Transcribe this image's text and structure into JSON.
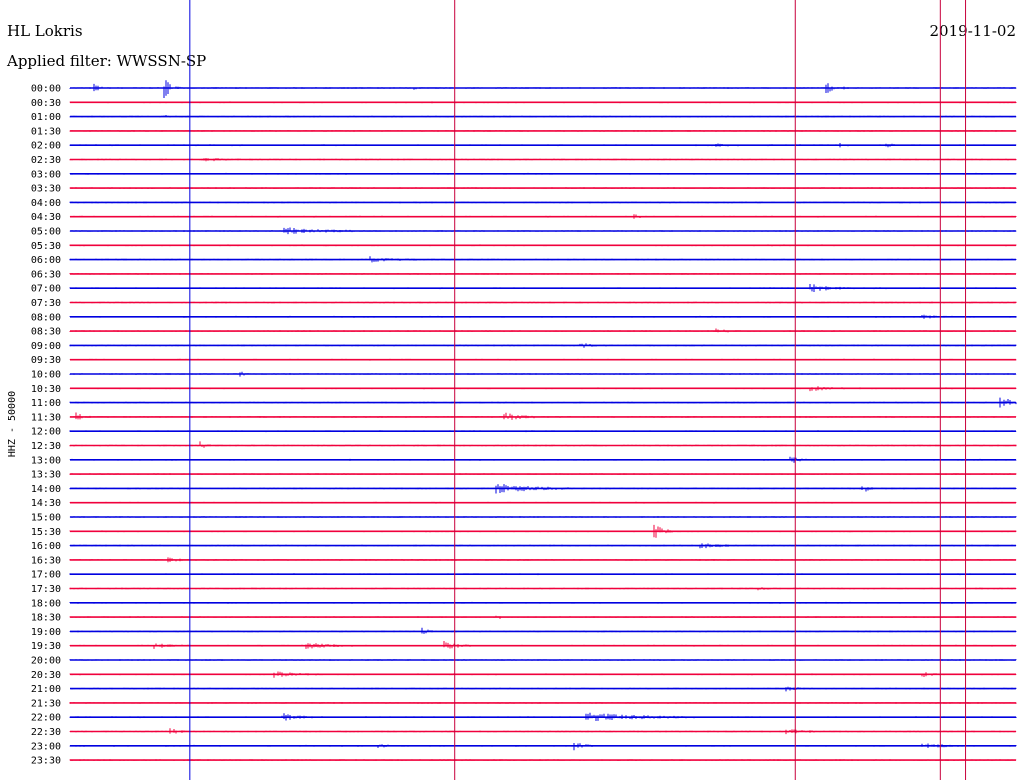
{
  "chart_data": {
    "type": "line",
    "title": "HL Lokris",
    "date": "2019-11-02",
    "subtitle": "Applied filter: WWSSN-SP",
    "ylabel": "HHZ - 50000",
    "row_labels": [
      "00:00",
      "00:30",
      "01:00",
      "01:30",
      "02:00",
      "02:30",
      "03:00",
      "03:30",
      "04:00",
      "04:30",
      "05:00",
      "05:30",
      "06:00",
      "06:30",
      "07:00",
      "07:30",
      "08:00",
      "08:30",
      "09:00",
      "09:30",
      "10:00",
      "10:30",
      "11:00",
      "11:30",
      "12:00",
      "12:30",
      "13:00",
      "13:30",
      "14:00",
      "14:30",
      "15:00",
      "15:30",
      "16:00",
      "16:30",
      "17:00",
      "17:30",
      "18:00",
      "18:30",
      "19:00",
      "19:30",
      "20:00",
      "20:30",
      "21:00",
      "21:30",
      "22:00",
      "22:30",
      "23:00",
      "23:30"
    ],
    "row_colors": [
      "#0000e0",
      "#f0003c"
    ],
    "row_minutes": 30,
    "grid": false,
    "marker_lines": [
      {
        "color": "#0000e0",
        "minute": 3.8
      },
      {
        "color": "#c8003c",
        "minute": 12.2
      },
      {
        "color": "#c8003c",
        "minute": 23.0
      },
      {
        "color": "#c8003c",
        "minute": 27.6
      },
      {
        "color": "#c8003c",
        "minute": 28.4
      }
    ],
    "events": [
      {
        "row": 0,
        "minute": 0.8,
        "amp": 0.5,
        "dur": 0.3
      },
      {
        "row": 0,
        "minute": 3.0,
        "amp": 1.4,
        "dur": 0.5
      },
      {
        "row": 0,
        "minute": 10.9,
        "amp": 0.3,
        "dur": 0.3
      },
      {
        "row": 0,
        "minute": 24.0,
        "amp": 0.7,
        "dur": 0.8
      },
      {
        "row": 2,
        "minute": 3.0,
        "amp": 0.6,
        "dur": 0.2
      },
      {
        "row": 4,
        "minute": 20.5,
        "amp": 0.15,
        "dur": 0.8
      },
      {
        "row": 4,
        "minute": 24.4,
        "amp": 0.45,
        "dur": 0.3
      },
      {
        "row": 4,
        "minute": 25.9,
        "amp": 0.35,
        "dur": 0.3
      },
      {
        "row": 5,
        "minute": 4.2,
        "amp": 0.25,
        "dur": 1.2
      },
      {
        "row": 9,
        "minute": 17.9,
        "amp": 0.35,
        "dur": 0.3
      },
      {
        "row": 10,
        "minute": 6.8,
        "amp": 0.5,
        "dur": 2.2
      },
      {
        "row": 12,
        "minute": 9.5,
        "amp": 0.35,
        "dur": 1.5
      },
      {
        "row": 14,
        "minute": 23.5,
        "amp": 0.5,
        "dur": 1.3
      },
      {
        "row": 16,
        "minute": 27.0,
        "amp": 0.25,
        "dur": 0.8
      },
      {
        "row": 17,
        "minute": 20.5,
        "amp": 0.25,
        "dur": 0.8
      },
      {
        "row": 18,
        "minute": 16.2,
        "amp": 0.3,
        "dur": 0.8
      },
      {
        "row": 20,
        "minute": 5.4,
        "amp": 0.35,
        "dur": 0.3
      },
      {
        "row": 21,
        "minute": 23.5,
        "amp": 0.35,
        "dur": 1.2
      },
      {
        "row": 22,
        "minute": 29.5,
        "amp": 1.0,
        "dur": 0.7
      },
      {
        "row": 23,
        "minute": 0.2,
        "amp": 0.5,
        "dur": 0.6
      },
      {
        "row": 23,
        "minute": 13.8,
        "amp": 0.6,
        "dur": 1.0
      },
      {
        "row": 25,
        "minute": 4.1,
        "amp": 0.6,
        "dur": 0.4
      },
      {
        "row": 26,
        "minute": 22.8,
        "amp": 0.6,
        "dur": 0.6
      },
      {
        "row": 28,
        "minute": 13.5,
        "amp": 0.7,
        "dur": 2.4
      },
      {
        "row": 28,
        "minute": 25.1,
        "amp": 0.8,
        "dur": 0.4
      },
      {
        "row": 31,
        "minute": 18.5,
        "amp": 1.2,
        "dur": 0.6
      },
      {
        "row": 32,
        "minute": 20.0,
        "amp": 0.35,
        "dur": 1.2
      },
      {
        "row": 33,
        "minute": 3.1,
        "amp": 0.25,
        "dur": 0.9
      },
      {
        "row": 35,
        "minute": 21.8,
        "amp": 0.2,
        "dur": 0.6
      },
      {
        "row": 37,
        "minute": 13.5,
        "amp": 0.3,
        "dur": 0.5
      },
      {
        "row": 38,
        "minute": 11.2,
        "amp": 0.5,
        "dur": 0.3
      },
      {
        "row": 39,
        "minute": 2.6,
        "amp": 0.4,
        "dur": 1.0
      },
      {
        "row": 39,
        "minute": 7.5,
        "amp": 0.4,
        "dur": 1.5
      },
      {
        "row": 39,
        "minute": 11.9,
        "amp": 0.6,
        "dur": 0.8
      },
      {
        "row": 41,
        "minute": 6.5,
        "amp": 0.35,
        "dur": 1.4
      },
      {
        "row": 41,
        "minute": 27.0,
        "amp": 0.4,
        "dur": 0.6
      },
      {
        "row": 42,
        "minute": 22.7,
        "amp": 0.3,
        "dur": 0.8
      },
      {
        "row": 44,
        "minute": 6.7,
        "amp": 0.6,
        "dur": 1.0
      },
      {
        "row": 44,
        "minute": 16.4,
        "amp": 0.6,
        "dur": 3.4
      },
      {
        "row": 45,
        "minute": 3.2,
        "amp": 0.5,
        "dur": 0.5
      },
      {
        "row": 45,
        "minute": 22.7,
        "amp": 0.3,
        "dur": 1.2
      },
      {
        "row": 46,
        "minute": 9.8,
        "amp": 0.35,
        "dur": 0.5
      },
      {
        "row": 46,
        "minute": 16.0,
        "amp": 0.55,
        "dur": 0.6
      },
      {
        "row": 46,
        "minute": 27.0,
        "amp": 0.3,
        "dur": 1.4
      }
    ]
  }
}
